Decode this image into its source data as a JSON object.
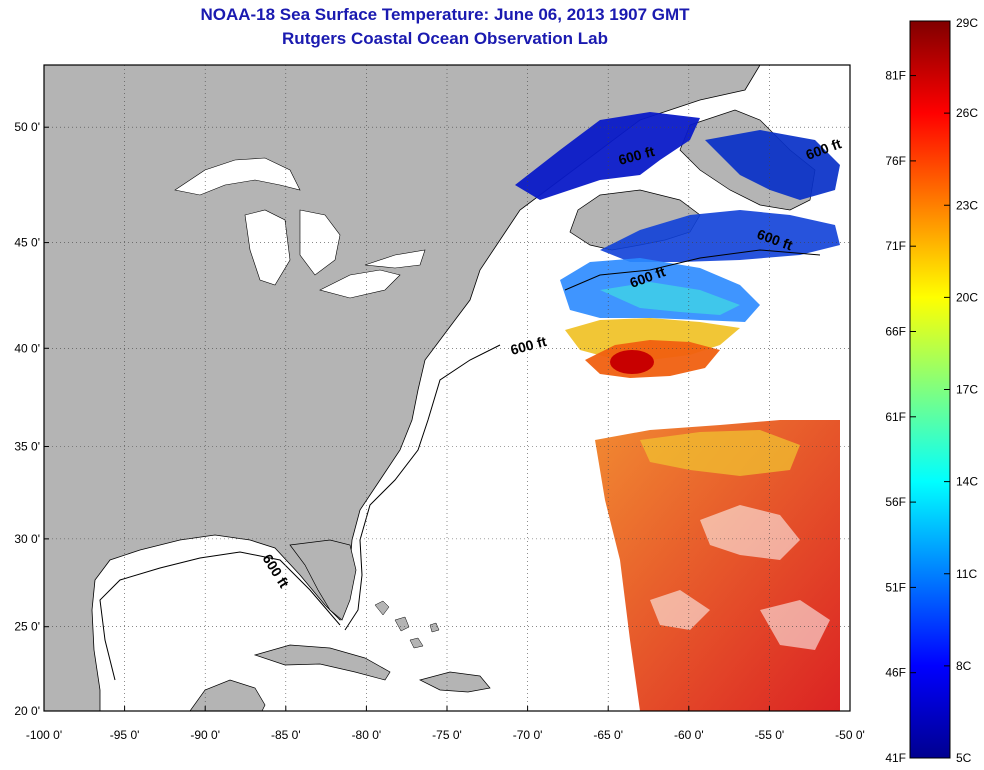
{
  "title": "NOAA-18 Sea Surface Temperature:  June 06, 2013 1907 GMT",
  "subtitle": "Rutgers Coastal Ocean Observation Lab",
  "map": {
    "lon_range": [
      -100,
      -50
    ],
    "lat_range": [
      20,
      52.5
    ],
    "lon_ticks": [
      "-100 0'",
      "-95 0'",
      "-90 0'",
      "-85 0'",
      "-80 0'",
      "-75 0'",
      "-70 0'",
      "-65 0'",
      "-60 0'",
      "-55 0'",
      "-50 0'"
    ],
    "lat_ticks": [
      "20 0'",
      "25 0'",
      "30 0'",
      "35 0'",
      "40 0'",
      "45 0'",
      "50 0'"
    ],
    "contour_label": "600 ft",
    "land_color": "#b4b4b4",
    "grid": "dotted"
  },
  "colorbar": {
    "celsius_labels": [
      "29C",
      "26C",
      "23C",
      "20C",
      "17C",
      "14C",
      "11C",
      "8C",
      "5C"
    ],
    "fahrenheit_labels": [
      "81F",
      "76F",
      "71F",
      "66F",
      "61F",
      "56F",
      "51F",
      "46F",
      "41F"
    ],
    "colormap": "jet"
  }
}
